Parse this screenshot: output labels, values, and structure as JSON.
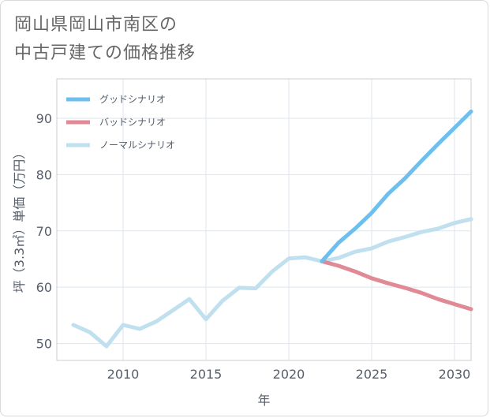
{
  "title_lines": [
    "岡山県岡山市南区の",
    "中古戸建ての価格推移"
  ],
  "chart_data": {
    "type": "line",
    "title": "岡山県岡山市南区の中古戸建ての価格推移",
    "xlabel": "年",
    "ylabel": "坪（3.3㎡）単価（万円）",
    "xlim": [
      2006,
      2031
    ],
    "ylim": [
      47,
      97
    ],
    "xticks": [
      2010,
      2015,
      2020,
      2025,
      2030
    ],
    "yticks": [
      50,
      60,
      70,
      80,
      90
    ],
    "grid": true,
    "legend_position": "top-left",
    "series": [
      {
        "name": "グッドシナリオ",
        "color": "#6cbfee",
        "x": [
          2022,
          2023,
          2024,
          2025,
          2026,
          2027,
          2028,
          2029,
          2030,
          2031
        ],
        "y": [
          64.6,
          67.9,
          70.4,
          73.2,
          76.6,
          79.3,
          82.4,
          85.4,
          88.3,
          91.2
        ]
      },
      {
        "name": "バッドシナリオ",
        "color": "#e08a95",
        "x": [
          2022,
          2023,
          2024,
          2025,
          2026,
          2027,
          2028,
          2029,
          2030,
          2031
        ],
        "y": [
          64.6,
          63.8,
          62.8,
          61.6,
          60.7,
          59.9,
          59.0,
          57.9,
          57.0,
          56.1
        ]
      },
      {
        "name": "ノーマルシナリオ",
        "color": "#c0e0ef",
        "x": [
          2007,
          2008,
          2009,
          2010,
          2011,
          2012,
          2013,
          2014,
          2015,
          2016,
          2017,
          2018,
          2019,
          2020,
          2021,
          2022,
          2023,
          2024,
          2025,
          2026,
          2027,
          2028,
          2029,
          2030,
          2031
        ],
        "y": [
          53.3,
          52.0,
          49.5,
          53.3,
          52.6,
          53.9,
          55.9,
          57.9,
          54.3,
          57.6,
          59.9,
          59.8,
          62.8,
          65.1,
          65.3,
          64.6,
          65.2,
          66.3,
          66.9,
          68.1,
          68.9,
          69.8,
          70.4,
          71.4,
          72.1
        ]
      }
    ]
  }
}
